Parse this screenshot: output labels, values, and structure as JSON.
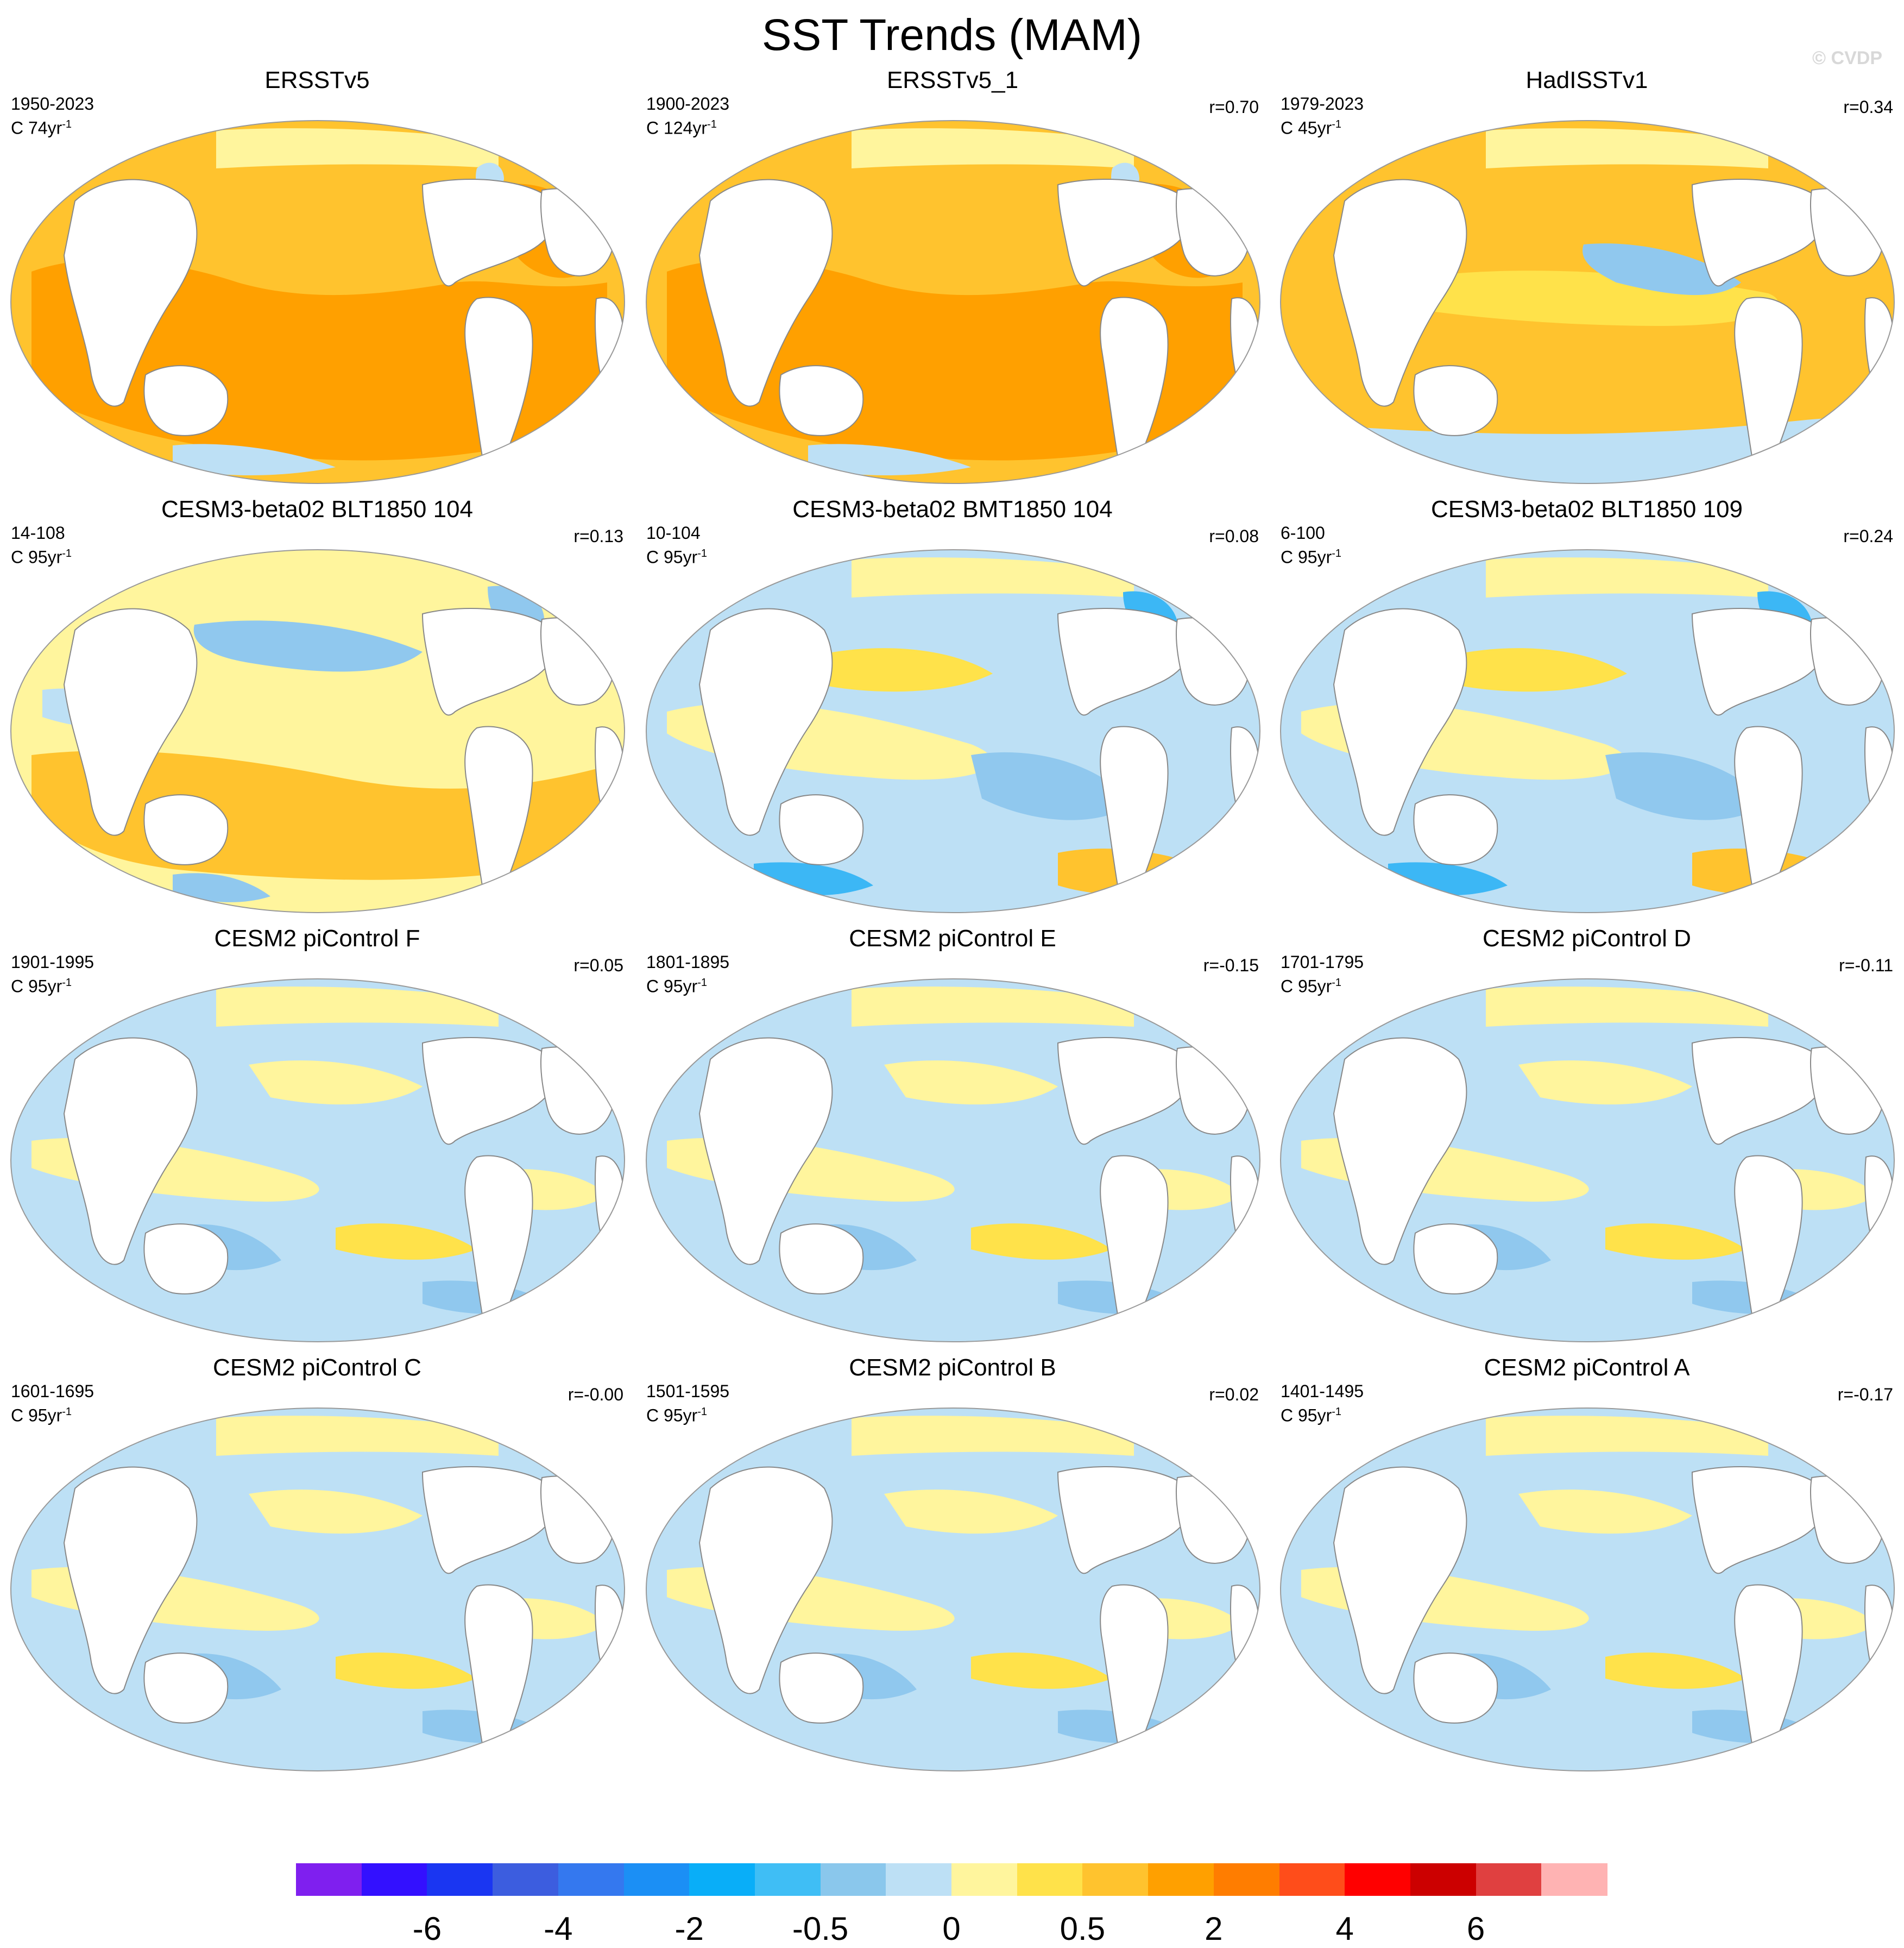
{
  "title": "SST Trends (MAM)",
  "watermark": "© CVDP",
  "panels": [
    {
      "title": "ERSSTv5",
      "years": "1950-2023",
      "units": "C 74yr",
      "units_sup": "-1",
      "corr": "",
      "pattern": "warm_obs"
    },
    {
      "title": "ERSSTv5_1",
      "years": "1900-2023",
      "units": "C 124yr",
      "units_sup": "-1",
      "corr": "r=0.70",
      "pattern": "warm_obs_strong"
    },
    {
      "title": "HadISSTv1",
      "years": "1979-2023",
      "units": "C 45yr",
      "units_sup": "-1",
      "corr": "r=0.34",
      "pattern": "warm_obs_mixed"
    },
    {
      "title": "CESM3-beta02 BLT1850 104",
      "years": "14-108",
      "units": "C 95yr",
      "units_sup": "-1",
      "corr": "r=0.13",
      "pattern": "model_warm"
    },
    {
      "title": "CESM3-beta02 BMT1850 104",
      "years": "10-104",
      "units": "C 95yr",
      "units_sup": "-1",
      "corr": "r=0.08",
      "pattern": "model_mixed"
    },
    {
      "title": "CESM3-beta02 BLT1850 109",
      "years": "6-100",
      "units": "C 95yr",
      "units_sup": "-1",
      "corr": "r=0.24",
      "pattern": "model_mixed"
    },
    {
      "title": "CESM2 piControl F",
      "years": "1901-1995",
      "units": "C 95yr",
      "units_sup": "-1",
      "corr": "r=0.05",
      "pattern": "control"
    },
    {
      "title": "CESM2 piControl E",
      "years": "1801-1895",
      "units": "C 95yr",
      "units_sup": "-1",
      "corr": "r=-0.15",
      "pattern": "control"
    },
    {
      "title": "CESM2 piControl D",
      "years": "1701-1795",
      "units": "C 95yr",
      "units_sup": "-1",
      "corr": "r=-0.11",
      "pattern": "control"
    },
    {
      "title": "CESM2 piControl C",
      "years": "1601-1695",
      "units": "C 95yr",
      "units_sup": "-1",
      "corr": "r=-0.00",
      "pattern": "control"
    },
    {
      "title": "CESM2 piControl B",
      "years": "1501-1595",
      "units": "C 95yr",
      "units_sup": "-1",
      "corr": "r=0.02",
      "pattern": "control"
    },
    {
      "title": "CESM2 piControl A",
      "years": "1401-1495",
      "units": "C 95yr",
      "units_sup": "-1",
      "corr": "r=-0.17",
      "pattern": "control"
    }
  ],
  "colors": {
    "land": "#ffffff",
    "coast": "#888888",
    "outline": "#999999",
    "neutral_warm": "#fff59d",
    "light_warm": "#ffe24a",
    "mid_warm": "#ffc32e",
    "strong_warm": "#ffa000",
    "neutral_cool": "#bde0f5",
    "light_cool": "#90c8ee",
    "mid_cool": "#3cb7f5",
    "strong_cool": "#1897f0"
  },
  "colorbar": {
    "colors": [
      "#7f1fef",
      "#3310ff",
      "#1a36f2",
      "#3c5ddf",
      "#3478ef",
      "#1b8ff5",
      "#09aef8",
      "#3fbef5",
      "#8ac7ec",
      "#bde0f5",
      "#fff59d",
      "#ffe24a",
      "#ffc32e",
      "#ffa000",
      "#ff7d00",
      "#ff4d1a",
      "#ff0000",
      "#cc0000",
      "#e04040",
      "#ffb3b3"
    ],
    "labels": [
      "-6",
      "-4",
      "-2",
      "-0.5",
      "0",
      "0.5",
      "2",
      "4",
      "6"
    ]
  }
}
